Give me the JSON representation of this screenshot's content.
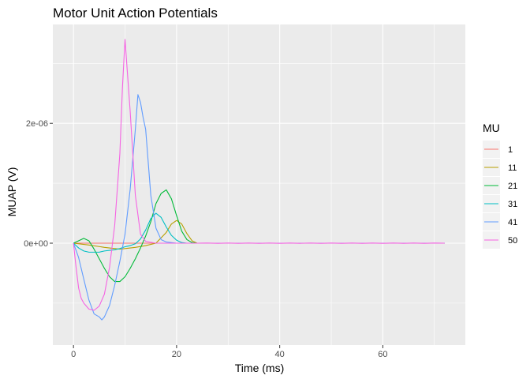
{
  "chart_data": {
    "type": "line",
    "title": "Motor Unit Action Potentials",
    "xlabel": "Time (ms)",
    "ylabel": "MUAP (V)",
    "xlim": [
      -4,
      76
    ],
    "ylim": [
      -1.7e-06,
      3.65e-06
    ],
    "x_ticks": [
      0,
      20,
      40,
      60
    ],
    "x_tick_labels": [
      "0",
      "20",
      "40",
      "60"
    ],
    "y_ticks": [
      0,
      2e-06
    ],
    "y_tick_labels": [
      "0e+00",
      "2e-06"
    ],
    "grid": true,
    "legend": {
      "title": "MU",
      "position": "right"
    },
    "series": [
      {
        "name": "1",
        "color": "#F8766D",
        "x": [
          0,
          2,
          4,
          6,
          8,
          10,
          12,
          14,
          16,
          18,
          20,
          24,
          30,
          40,
          50,
          60,
          72
        ],
        "y": [
          0,
          0,
          0,
          0,
          0,
          0,
          0,
          0,
          0,
          0,
          0,
          0,
          0,
          0,
          0,
          0,
          0
        ]
      },
      {
        "name": "11",
        "color": "#B79F00",
        "x": [
          0,
          3,
          6,
          9,
          12,
          14,
          16,
          18,
          19,
          20,
          21,
          22,
          23,
          24,
          26,
          30,
          40,
          50,
          60,
          72
        ],
        "y": [
          0,
          -3e-08,
          -7e-08,
          -1e-07,
          -7e-08,
          -4e-08,
          0,
          1.8e-07,
          3.2e-07,
          3.8e-07,
          3.2e-07,
          1.6e-07,
          4e-08,
          0,
          0,
          0,
          0,
          0,
          0,
          0
        ]
      },
      {
        "name": "21",
        "color": "#00BA38",
        "x": [
          0,
          2,
          3,
          4,
          5,
          6,
          7,
          8,
          9,
          10,
          11,
          12,
          13,
          14,
          15,
          16,
          17,
          18,
          19,
          20,
          21,
          22,
          23,
          24,
          26,
          30,
          40,
          50,
          60,
          72
        ],
        "y": [
          0,
          8e-08,
          4e-08,
          -1e-07,
          -2.6e-07,
          -4.2e-07,
          -5.6e-07,
          -6.4e-07,
          -6.4e-07,
          -5.6e-07,
          -4.2e-07,
          -2.6e-07,
          -8e-08,
          1.2e-07,
          3.6e-07,
          6.6e-07,
          8.3e-07,
          8.9e-07,
          7.4e-07,
          4.6e-07,
          2e-07,
          6e-08,
          1e-08,
          0,
          0,
          0,
          0,
          0,
          0,
          0
        ]
      },
      {
        "name": "31",
        "color": "#00BFC4",
        "x": [
          0,
          1,
          2,
          3,
          4,
          5,
          6,
          7,
          8,
          9,
          10,
          11,
          12,
          13,
          14,
          15,
          16,
          17,
          18,
          19,
          20,
          21,
          22,
          24,
          26,
          30,
          40,
          50,
          60,
          72
        ],
        "y": [
          0,
          -8e-08,
          -1.3e-07,
          -1.5e-07,
          -1.5e-07,
          -1.5e-07,
          -1.3e-07,
          -1.2e-07,
          -1.1e-07,
          -9e-08,
          -6e-08,
          -4e-08,
          -1e-08,
          7e-08,
          2.2e-07,
          4.1e-07,
          5e-07,
          4.3e-07,
          2.7e-07,
          1.3e-07,
          5e-08,
          1e-08,
          0,
          0,
          0,
          0,
          0,
          0,
          0,
          0
        ]
      },
      {
        "name": "41",
        "color": "#619CFF",
        "x": [
          0,
          1,
          2,
          3,
          4,
          5,
          5.5,
          6,
          7,
          8,
          9,
          10,
          11,
          12,
          12.5,
          13,
          13.5,
          14,
          15,
          16,
          17,
          18,
          20,
          22,
          24,
          30,
          40,
          50,
          60,
          72
        ],
        "y": [
          0,
          -2.4e-07,
          -6e-07,
          -9.5e-07,
          -1.18e-06,
          -1.23e-06,
          -1.28e-06,
          -1.23e-06,
          -1.04e-06,
          -7e-07,
          -3e-07,
          1.5e-07,
          9e-07,
          1.9e-06,
          2.48e-06,
          2.35e-06,
          2.1e-06,
          1.9e-06,
          8e-07,
          2.5e-07,
          6e-08,
          2e-08,
          0,
          0,
          0,
          0,
          0,
          0,
          0,
          0
        ]
      },
      {
        "name": "50",
        "color": "#F564E3",
        "x": [
          0,
          0.5,
          1,
          1.5,
          2,
          3,
          4,
          5,
          6,
          7,
          8,
          9,
          9.5,
          10,
          11,
          12,
          13,
          14,
          16,
          20,
          24,
          26,
          28,
          30,
          32,
          34,
          36,
          38,
          40,
          42,
          44,
          46,
          48,
          50,
          52,
          54,
          56,
          58,
          60,
          62,
          64,
          66,
          68,
          70,
          72
        ],
        "y": [
          0,
          -4e-07,
          -7.5e-07,
          -9.2e-07,
          -1e-06,
          -1.1e-06,
          -1.12e-06,
          -1.05e-06,
          -8.5e-07,
          -4e-07,
          3e-07,
          1.5e-06,
          2.6e-06,
          3.4e-06,
          2.2e-06,
          8e-07,
          1.5e-07,
          3e-08,
          0,
          0,
          0,
          2e-09,
          -2e-09,
          2e-09,
          -2e-09,
          2e-09,
          -2e-09,
          2e-09,
          -2e-09,
          2e-09,
          -2e-09,
          2e-09,
          -2e-09,
          2e-09,
          -2e-09,
          2e-09,
          -2e-09,
          2e-09,
          -2e-09,
          2e-09,
          -2e-09,
          2e-09,
          -2e-09,
          2e-09,
          0
        ]
      }
    ]
  }
}
